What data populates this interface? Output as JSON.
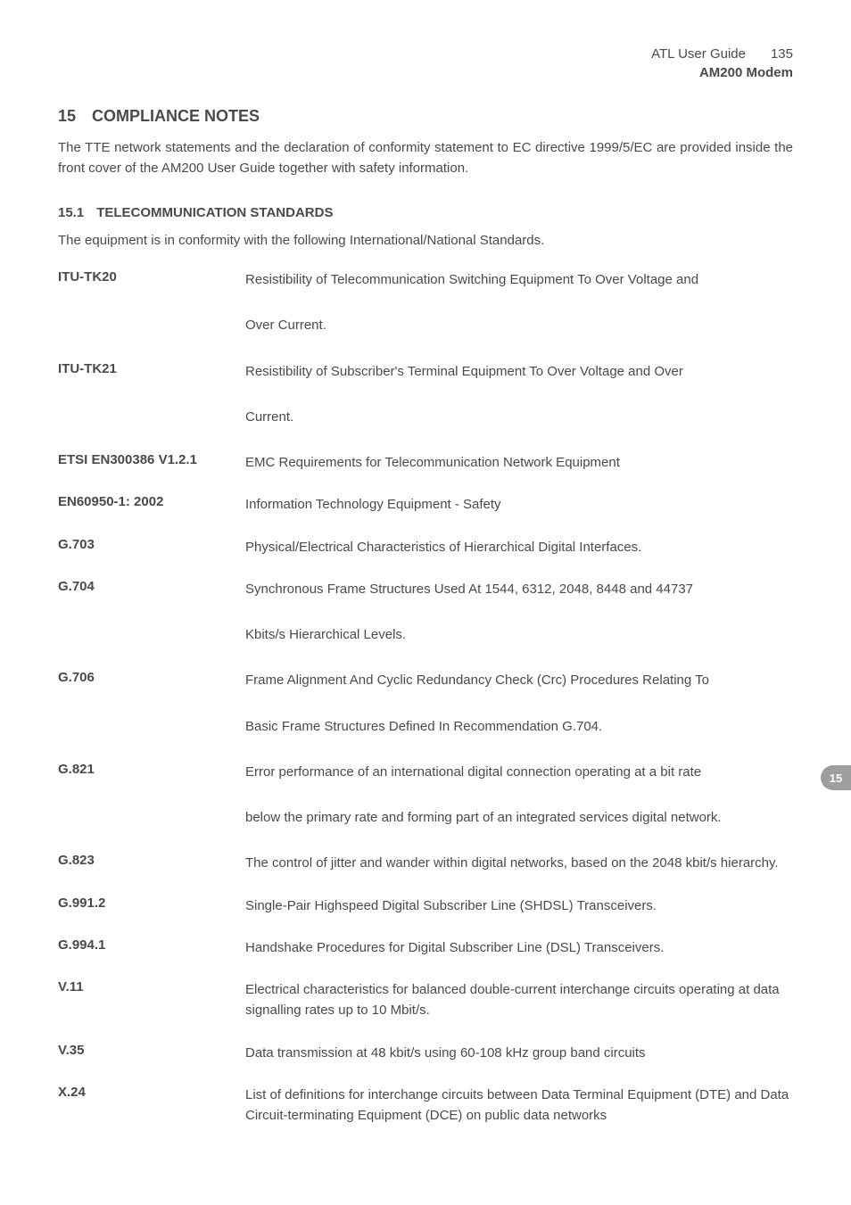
{
  "header": {
    "guide_title": "ATL User Guide",
    "page_number": "135",
    "product_name": "AM200 Modem"
  },
  "section": {
    "number": "15",
    "title": "COMPLIANCE NOTES",
    "intro": "The TTE network statements and the declaration of conformity statement to EC directive 1999/5/EC are provided inside the front cover of the AM200 User Guide together with safety information."
  },
  "subsection": {
    "number": "15.1",
    "title": "TELECOMMUNICATION STANDARDS",
    "intro": "The equipment is in conformity with the following International/National Standards."
  },
  "standards": [
    {
      "label": "ITU-TK20",
      "desc": [
        "Resistibility of Telecommunication Switching Equipment To Over Voltage and",
        "Over Current."
      ],
      "spaced": true
    },
    {
      "label": "ITU-TK21",
      "desc": [
        "Resistibility of Subscriber's Terminal Equipment To Over Voltage and Over",
        "Current."
      ],
      "spaced": true
    },
    {
      "label": "ETSI EN300386 V1.2.1",
      "desc": [
        "EMC Requirements for Telecommunication Network Equipment"
      ],
      "spaced": false
    },
    {
      "label": "EN60950-1: 2002",
      "desc": [
        "Information Technology Equipment - Safety"
      ],
      "spaced": false
    },
    {
      "label": "G.703",
      "desc": [
        "Physical/Electrical Characteristics of Hierarchical Digital Interfaces."
      ],
      "spaced": false
    },
    {
      "label": "G.704",
      "desc": [
        "Synchronous Frame Structures Used At 1544, 6312, 2048, 8448 and 44737",
        "Kbits/s Hierarchical Levels."
      ],
      "spaced": true
    },
    {
      "label": "G.706",
      "desc": [
        "Frame Alignment And Cyclic Redundancy Check  (Crc) Procedures Relating To",
        "Basic Frame Structures Defined In Recommendation G.704."
      ],
      "spaced": true
    },
    {
      "label": "G.821",
      "desc": [
        "Error performance of an international digital connection operating at a bit rate",
        "below the primary rate and forming part of an integrated services digital network."
      ],
      "spaced": true
    },
    {
      "label": "G.823",
      "desc": [
        "The control of jitter and wander within digital networks, based on the 2048  kbit/s hierarchy."
      ],
      "spaced": false
    },
    {
      "label": "G.991.2",
      "desc": [
        "Single-Pair Highspeed Digital Subscriber Line (SHDSL) Transceivers."
      ],
      "spaced": false
    },
    {
      "label": "G.994.1",
      "desc": [
        "Handshake Procedures for Digital Subscriber Line (DSL) Transceivers."
      ],
      "spaced": false
    },
    {
      "label": "V.11",
      "desc": [
        "Electrical characteristics for balanced double-current interchange circuits operating at data signalling rates up to 10 Mbit/s."
      ],
      "spaced": false
    },
    {
      "label": "V.35",
      "desc": [
        "Data transmission at 48 kbit/s using 60-108 kHz group band circuits"
      ],
      "spaced": false
    },
    {
      "label": "X.24",
      "desc": [
        "List of definitions for interchange circuits between Data Terminal Equipment (DTE) and Data Circuit-terminating Equipment (DCE) on public data networks"
      ],
      "spaced": false
    }
  ],
  "side_tab": "15",
  "colors": {
    "text": "#4a4a4a",
    "background": "#ffffff",
    "tab_bg": "#9e9e9e",
    "tab_text": "#ffffff"
  }
}
